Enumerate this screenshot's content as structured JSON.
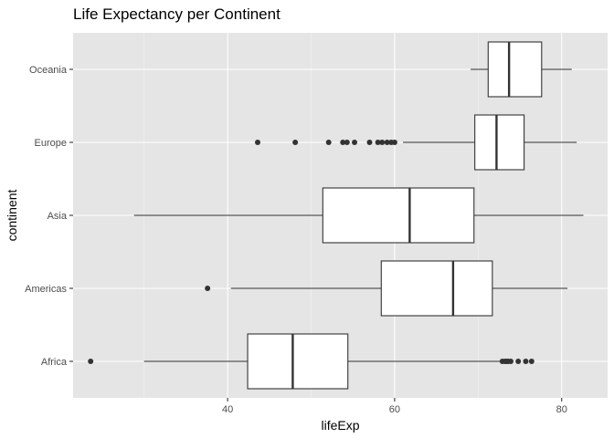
{
  "chart_data": {
    "type": "boxplot",
    "orientation": "horizontal",
    "title": "Life Expectancy per Continent",
    "xlabel": "lifeExp",
    "ylabel": "continent",
    "xlim": [
      21.5,
      85.5
    ],
    "x_ticks": [
      40,
      60,
      80
    ],
    "x_tick_labels": [
      "40",
      "60",
      "80"
    ],
    "x_minor_ticks": [
      30,
      50,
      70
    ],
    "categories": [
      "Africa",
      "Americas",
      "Asia",
      "Europe",
      "Oceania"
    ],
    "boxes": [
      {
        "category": "Africa",
        "lower_whisker": 30.0,
        "q1": 42.4,
        "median": 47.8,
        "q3": 54.4,
        "upper_whisker": 72.8,
        "outliers": [
          23.6,
          72.9,
          73.2,
          73.4,
          73.6,
          73.9,
          74.8,
          75.7,
          76.4
        ]
      },
      {
        "category": "Americas",
        "lower_whisker": 40.4,
        "q1": 58.4,
        "median": 67.0,
        "q3": 71.7,
        "upper_whisker": 80.7,
        "outliers": [
          37.6
        ]
      },
      {
        "category": "Asia",
        "lower_whisker": 28.8,
        "q1": 51.4,
        "median": 61.8,
        "q3": 69.5,
        "upper_whisker": 82.6,
        "outliers": []
      },
      {
        "category": "Europe",
        "lower_whisker": 61.0,
        "q1": 69.6,
        "median": 72.2,
        "q3": 75.5,
        "upper_whisker": 81.8,
        "outliers": [
          43.6,
          48.1,
          52.1,
          53.8,
          54.3,
          55.2,
          57.0,
          58.0,
          58.5,
          59.1,
          59.6,
          60.0
        ]
      },
      {
        "category": "Oceania",
        "lower_whisker": 69.1,
        "q1": 71.2,
        "median": 73.7,
        "q3": 77.6,
        "upper_whisker": 81.2,
        "outliers": []
      }
    ],
    "grid": true,
    "legend": "none",
    "colors": {
      "panel_background": "#e5e5e5",
      "grid_major": "#ffffff",
      "grid_minor": "#f2f2f2",
      "box_fill": "#ffffff",
      "box_stroke": "#333333",
      "tick_label": "#4d4d4d",
      "tick_mark": "#333333"
    }
  }
}
